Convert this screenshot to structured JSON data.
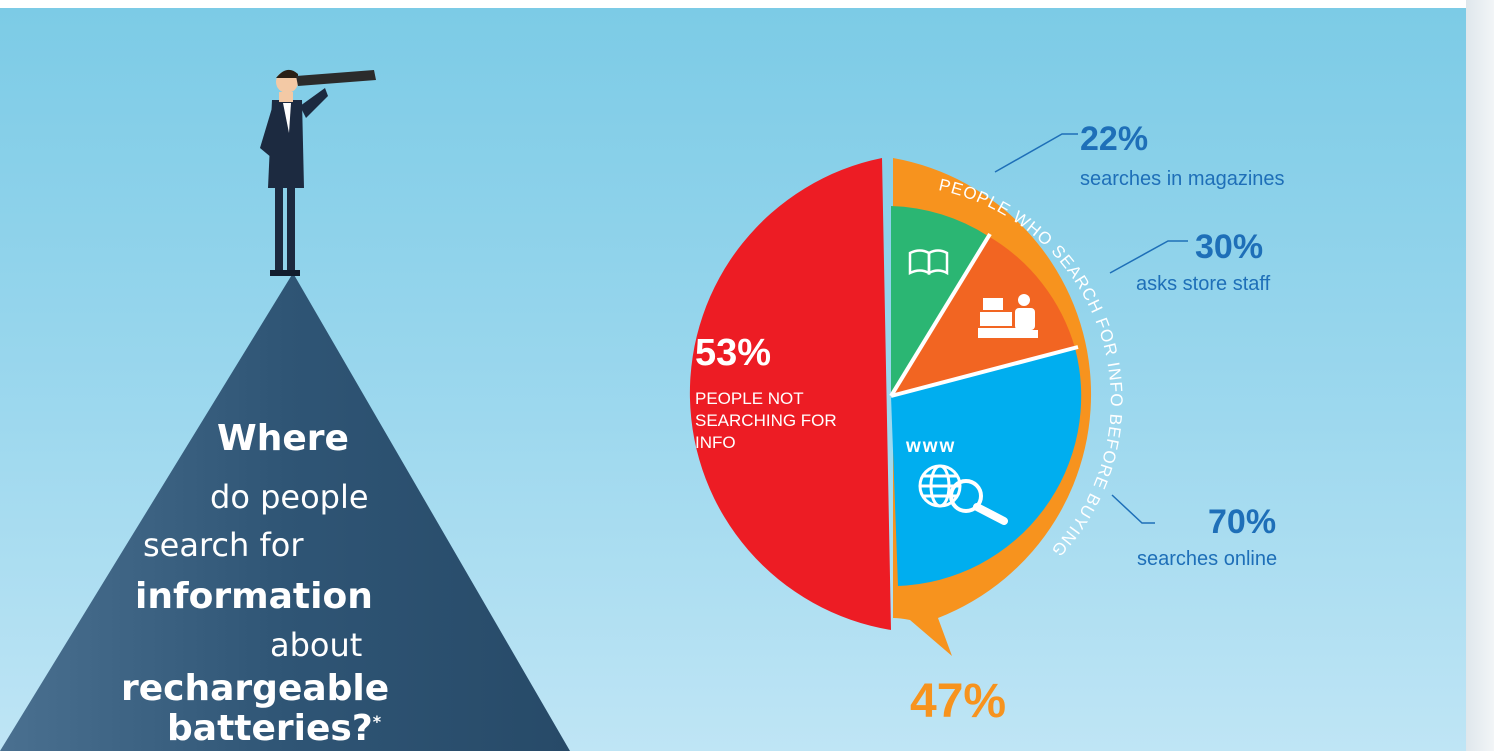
{
  "title": {
    "line1": "Where",
    "line2": "do people",
    "line3": "search for",
    "line4": "information",
    "line5": "about",
    "line6": "rechargeable",
    "line7": "batteries?",
    "footnote_mark": "*"
  },
  "chart_data": [
    {
      "type": "pie",
      "slices": [
        {
          "label": "PEOPLE NOT SEARCHING FOR INFO",
          "value": 53,
          "value_label": "53%",
          "color": "#ed1c24"
        },
        {
          "label": "PEOPLE WHO SEARCH FOR INFO BEFORE BUYING",
          "value": 47,
          "value_label": "47%",
          "color": "#f7931e"
        }
      ]
    },
    {
      "type": "bar",
      "title": "PEOPLE WHO SEARCH FOR INFO BEFORE BUYING",
      "categories": [
        "searches in magazines",
        "asks store staff",
        "searches online"
      ],
      "values": [
        22,
        30,
        70
      ],
      "value_labels": [
        "22%",
        "30%",
        "70%"
      ],
      "colors": [
        "#2bb673",
        "#f26522",
        "#00aeef"
      ],
      "icons": [
        "open-book-icon",
        "cash-register-icon",
        "globe-search-icon"
      ]
    }
  ],
  "icon_text": {
    "www": "www"
  },
  "colors": {
    "background": "#7ccbe6",
    "accent_text": "#1e6fb8",
    "mountain": "#2f5575"
  }
}
